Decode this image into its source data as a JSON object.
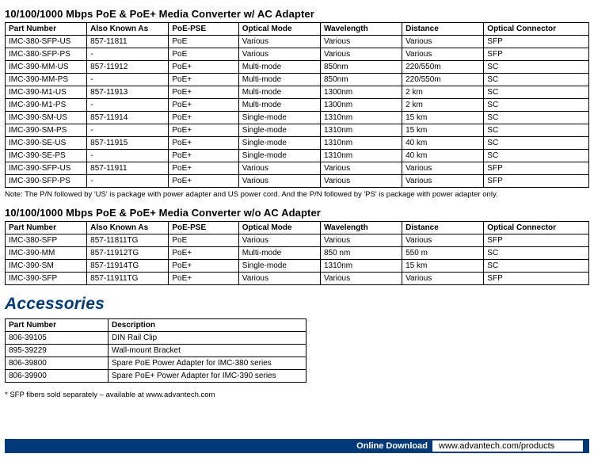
{
  "section1": {
    "title": "10/100/1000 Mbps PoE & PoE+ Media Converter w/ AC Adapter",
    "columns": [
      "Part Number",
      "Also Known As",
      "PoE-PSE",
      "Optical Mode",
      "Wavelength",
      "Distance",
      "Optical Connector"
    ],
    "col_widths": [
      "14%",
      "14%",
      "12%",
      "14%",
      "14%",
      "14%",
      "18%"
    ],
    "rows": [
      [
        "IMC-380-SFP-US",
        "857-11811",
        "PoE",
        "Various",
        "Various",
        "Various",
        "SFP"
      ],
      [
        "IMC-380-SFP-PS",
        "-",
        "PoE",
        "Various",
        "Various",
        "Various",
        "SFP"
      ],
      [
        "IMC-390-MM-US",
        "857-11912",
        "PoE+",
        "Multi-mode",
        "850nm",
        "220/550m",
        "SC"
      ],
      [
        "IMC-390-MM-PS",
        "-",
        "PoE+",
        "Multi-mode",
        "850nm",
        "220/550m",
        "SC"
      ],
      [
        "IMC-390-M1-US",
        "857-11913",
        "PoE+",
        "Multi-mode",
        "1300nm",
        "2 km",
        "SC"
      ],
      [
        "IMC-390-M1-PS",
        "-",
        "PoE+",
        "Multi-mode",
        "1300nm",
        "2 km",
        "SC"
      ],
      [
        "IMC-390-SM-US",
        "857-11914",
        "PoE+",
        "Single-mode",
        "1310nm",
        "15 km",
        "SC"
      ],
      [
        "IMC-390-SM-PS",
        "-",
        "PoE+",
        "Single-mode",
        "1310nm",
        "15 km",
        "SC"
      ],
      [
        "IMC-390-SE-US",
        "857-11915",
        "PoE+",
        "Single-mode",
        "1310nm",
        "40 km",
        "SC"
      ],
      [
        "IMC-390-SE-PS",
        "-",
        "PoE+",
        "Single-mode",
        "1310nm",
        "40 km",
        "SC"
      ],
      [
        "IMC-390-SFP-US",
        "857-11911",
        "PoE+",
        "Various",
        "Various",
        "Various",
        "SFP"
      ],
      [
        "IMC-390-SFP-PS",
        "-",
        "PoE+",
        "Various",
        "Various",
        "Various",
        "SFP"
      ]
    ],
    "note": "Note: The P/N followed by 'US' is package with power adapter and US power cord. And the P/N followed by 'PS' is package with  power adapter only."
  },
  "section2": {
    "title": "10/100/1000 Mbps PoE & PoE+ Media Converter w/o AC Adapter",
    "columns": [
      "Part Number",
      "Also Known As",
      "PoE-PSE",
      "Optical Mode",
      "Wavelength",
      "Distance",
      "Optical Connector"
    ],
    "col_widths": [
      "14%",
      "14%",
      "12%",
      "14%",
      "14%",
      "14%",
      "18%"
    ],
    "rows": [
      [
        "IMC-380-SFP",
        "857-11811TG",
        "PoE",
        "Various",
        "Various",
        "Various",
        "SFP"
      ],
      [
        "IMC-390-MM",
        "857-11912TG",
        "PoE+",
        "Multi-mode",
        "850 nm",
        "550 m",
        "SC"
      ],
      [
        "IMC-390-SM",
        "857-11914TG",
        "PoE+",
        "Single-mode",
        "1310nm",
        "15 km",
        "SC"
      ],
      [
        "IMC-390-SFP",
        "857-11911TG",
        "PoE+",
        "Various",
        "Various",
        "Various",
        "SFP"
      ]
    ]
  },
  "accessories": {
    "heading": "Accessories",
    "columns": [
      "Part Number",
      "Description"
    ],
    "col_widths": [
      "130px",
      "250px"
    ],
    "rows": [
      [
        "806-39105",
        "DIN Rail Clip"
      ],
      [
        "895-39229",
        "Wall-mount Bracket"
      ],
      [
        "806-39800",
        "Spare PoE Power Adapter for IMC-380 series"
      ],
      [
        "806-39900",
        "Spare PoE+ Power Adapter for IMC-390 series"
      ]
    ],
    "footnote": "* SFP fibers sold separately – available at www.advantech.com"
  },
  "footer": {
    "label": "Online Download",
    "url": "www.advantech.com/products"
  },
  "colors": {
    "brand_blue": "#003a7a",
    "border": "#000000",
    "text": "#000000",
    "background": "#ffffff"
  }
}
